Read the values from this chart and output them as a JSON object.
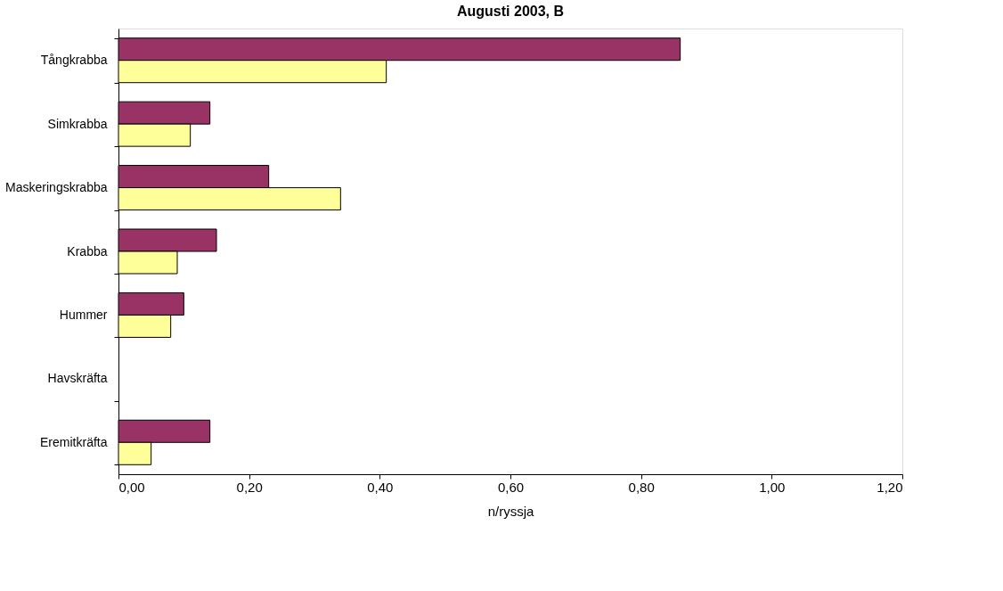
{
  "chart_data": {
    "type": "bar",
    "orientation": "horizontal",
    "title": "Augusti 2003, B",
    "xlabel": "n/ryssja",
    "categories": [
      "Tångkrabba",
      "Simkrabba",
      "Maskeringskrabba",
      "Krabba",
      "Hummer",
      "Havskräfta",
      "Eremitkräfta"
    ],
    "series": [
      {
        "color": "#993366",
        "values": [
          0.86,
          0.14,
          0.23,
          0.15,
          0.1,
          null,
          0.14
        ]
      },
      {
        "color": "#ffff99",
        "values": [
          0.41,
          0.11,
          0.34,
          0.09,
          0.08,
          null,
          0.05
        ]
      }
    ],
    "xlim": [
      0,
      1.2
    ],
    "xticks": [
      {
        "value": 0,
        "label": "0,00"
      },
      {
        "value": 0.2,
        "label": "0,20"
      },
      {
        "value": 0.4,
        "label": "0,40"
      },
      {
        "value": 0.6,
        "label": "0,60"
      },
      {
        "value": 0.8,
        "label": "0,80"
      },
      {
        "value": 1.0,
        "label": "1,00"
      },
      {
        "value": 1.2,
        "label": "1,20"
      }
    ],
    "grid": false,
    "legend": false
  }
}
